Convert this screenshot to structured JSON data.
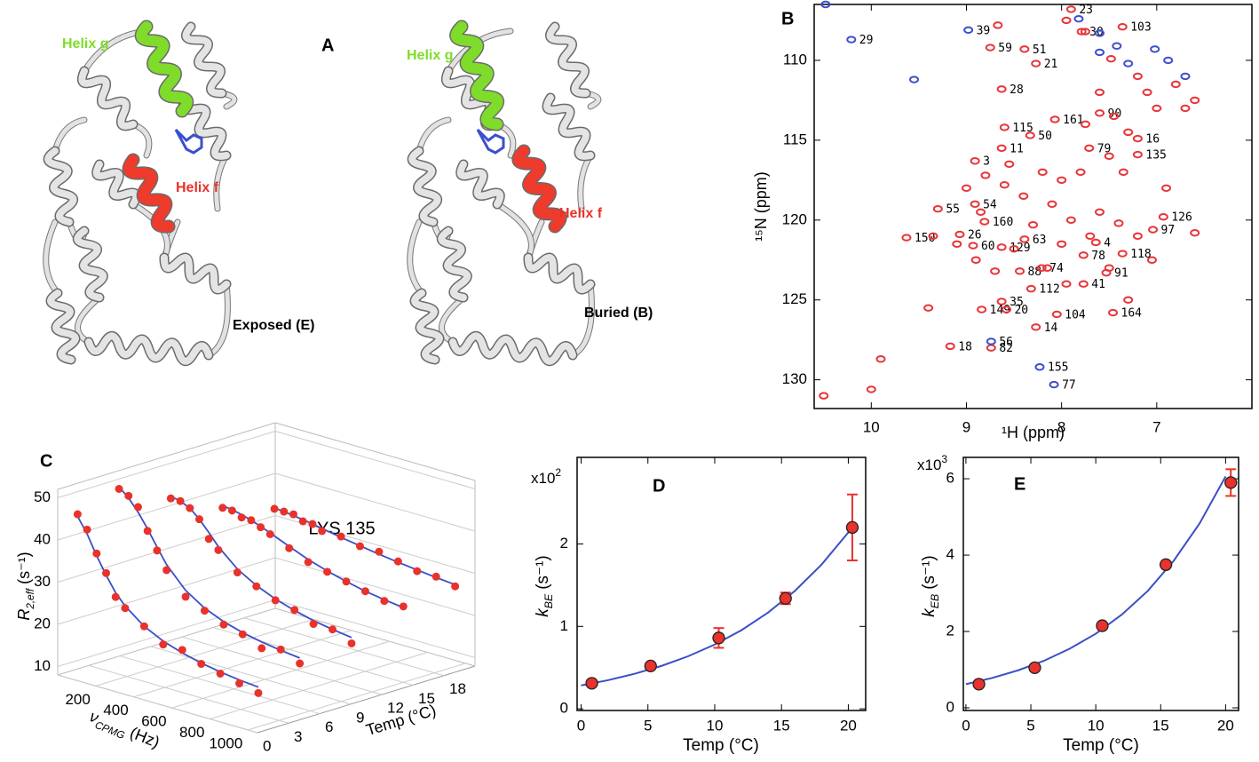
{
  "panel_a": {
    "label": "A",
    "left": {
      "helix_g": "Helix g",
      "helix_f": "Helix f",
      "state": "Exposed (E)"
    },
    "right": {
      "helix_g": "Helix g",
      "helix_f": "Helix f",
      "state": "Buried (B)"
    }
  },
  "chart_data": [
    {
      "type": "nmr",
      "panel": "B",
      "xlabel": "¹H (ppm)",
      "ylabel": "¹⁵N (ppm)",
      "xlim": [
        10.6,
        6.0
      ],
      "xticks": [
        10,
        9,
        8,
        7
      ],
      "ylim": [
        131.8,
        106.5
      ],
      "yticks": [
        110,
        115,
        120,
        125,
        130
      ],
      "series": [
        {
          "color": "#e8363a",
          "x": [
            7.9,
            7.79,
            7.36,
            8.75,
            8.39,
            8.27,
            8.63,
            8.07,
            7.6,
            8.6,
            8.33,
            7.71,
            8.63,
            7.2,
            7.2,
            8.91,
            8.91,
            9.3,
            8.81,
            9.07,
            6.93,
            7.04,
            9.63,
            8.93,
            8.63,
            8.39,
            7.64,
            7.36,
            7.77,
            8.44,
            8.21,
            7.53,
            7.77,
            8.32,
            8.63,
            8.84,
            8.58,
            8.05,
            7.46,
            8.27,
            9.17,
            8.74,
            10.5,
            9.9,
            10.0,
            8.67,
            7.95,
            7.75,
            7.48,
            7.2,
            7.1,
            7.0,
            6.8,
            6.7,
            6.6,
            7.6,
            7.45,
            7.3,
            7.5,
            7.75,
            7.8,
            8.0,
            8.2,
            8.4,
            8.6,
            8.8,
            9.0,
            8.1,
            7.9,
            7.6,
            7.4,
            7.2,
            8.3,
            8.5,
            8.0,
            7.7,
            7.5,
            8.7,
            8.9,
            9.1,
            9.35,
            9.4,
            7.05,
            6.9,
            7.35,
            8.55,
            8.85,
            8.15,
            7.95,
            7.3,
            6.6
          ],
          "values": [
            106.8,
            108.2,
            107.9,
            109.2,
            109.3,
            110.2,
            111.8,
            113.7,
            113.3,
            114.2,
            114.7,
            115.5,
            115.5,
            114.9,
            115.9,
            116.3,
            119.0,
            119.3,
            120.1,
            120.9,
            119.8,
            120.6,
            121.1,
            121.6,
            121.7,
            121.2,
            121.4,
            122.1,
            122.2,
            123.2,
            123.0,
            123.3,
            124.0,
            124.3,
            125.1,
            125.6,
            125.6,
            125.9,
            125.8,
            126.7,
            127.9,
            128.0,
            131.0,
            128.7,
            130.6,
            107.8,
            107.5,
            108.2,
            109.9,
            111,
            112,
            113,
            111.5,
            113,
            112.5,
            112,
            113.5,
            114.5,
            116,
            114.0,
            117,
            117.5,
            117,
            118.5,
            117.8,
            117.2,
            118,
            119,
            120,
            119.5,
            120.2,
            121,
            120.3,
            121.8,
            121.5,
            121,
            123,
            123.2,
            122.5,
            121.5,
            121,
            125.5,
            122.5,
            118,
            117,
            116.5,
            119.5,
            123,
            124,
            125,
            120.8
          ],
          "labels": [
            "23",
            "30",
            "103",
            "59",
            "51",
            "21",
            "28",
            "161",
            "90",
            "115",
            "50",
            "79",
            "11",
            "16",
            "135",
            "3",
            "54",
            "55",
            "160",
            "26",
            "126",
            "97",
            "150",
            "60",
            "129",
            "63",
            "4",
            "118",
            "78",
            "88",
            "74",
            "91",
            "41",
            "112",
            "35",
            "149",
            "20",
            "104",
            "164",
            "14",
            "18",
            "82",
            null,
            null,
            null,
            null,
            null,
            null,
            null,
            null,
            null,
            null,
            null,
            null,
            null,
            null,
            null,
            null,
            null,
            null,
            null,
            null,
            null,
            null,
            null,
            null,
            null,
            null,
            null,
            null,
            null,
            null,
            null,
            null,
            null,
            null,
            null,
            null,
            null,
            null,
            null,
            null,
            null,
            null,
            null,
            null,
            null,
            null,
            null,
            null,
            null
          ]
        },
        {
          "color": "#3e4fd0",
          "x": [
            10.21,
            8.98,
            8.74,
            8.23,
            8.08,
            10.48,
            9.55,
            7.82,
            7.6,
            7.6,
            7.42,
            7.3,
            6.88,
            6.7,
            7.02
          ],
          "values": [
            108.7,
            108.1,
            127.6,
            129.2,
            130.3,
            106.5,
            111.2,
            107.4,
            108.3,
            109.5,
            109.1,
            110.2,
            110.0,
            111.0,
            109.3
          ],
          "labels": [
            "29",
            "39",
            "56",
            "155",
            "77",
            null,
            null,
            null,
            null,
            null,
            null,
            null,
            null,
            null,
            null
          ]
        }
      ]
    },
    {
      "type": "line3d",
      "panel": "C",
      "annotation": "LYS 135",
      "ylabel": {
        "symbol": "R",
        "sub": "2,eff",
        "unit": "(s⁻¹)"
      },
      "xlabel": {
        "symbol": "ν",
        "sub": "CPMG",
        "unit": "(Hz)"
      },
      "zlabel": "Temp (°C)",
      "ylim": [
        8,
        52
      ],
      "yticks": [
        10,
        20,
        30,
        40,
        50
      ],
      "xlim": [
        0,
        1050
      ],
      "xticks": [
        200,
        400,
        600,
        800,
        1000
      ],
      "zlim": [
        0,
        21
      ],
      "zticks": [
        0,
        3,
        6,
        9,
        12,
        15,
        18
      ],
      "point_color": "#e8322b",
      "line_color": "#3a4fc8",
      "x": [
        50,
        100,
        150,
        200,
        250,
        300,
        400,
        500,
        600,
        700,
        800,
        900,
        1000
      ],
      "series": [
        {
          "z": 1,
          "values": [
            46,
            43,
            38,
            34,
            29,
            27,
            24,
            21,
            21,
            19,
            18,
            17,
            16
          ],
          "fit": [
            45.5,
            42,
            37.5,
            33.5,
            30,
            27.5,
            24,
            21.8,
            20.3,
            19.2,
            18.4,
            17.8,
            17.4
          ]
        },
        {
          "z": 5,
          "values": [
            49,
            48,
            46,
            41,
            37,
            33,
            28,
            26,
            24,
            23,
            21,
            22,
            20
          ],
          "fit": [
            49.5,
            47.5,
            44.8,
            41.5,
            37.8,
            34.3,
            29.5,
            26.6,
            24.7,
            23.4,
            22.5,
            21.8,
            21.3
          ]
        },
        {
          "z": 10,
          "values": [
            43,
            43,
            42,
            40,
            36,
            34,
            30,
            28,
            26,
            25,
            23,
            23,
            21
          ],
          "fit": [
            43.5,
            43,
            42,
            40,
            37.5,
            34.8,
            30.8,
            28.2,
            26.3,
            24.9,
            23.8,
            23,
            22.4
          ]
        },
        {
          "z": 15,
          "values": [
            37,
            37,
            36,
            36,
            35,
            34,
            32,
            30,
            29,
            28,
            27,
            26,
            26
          ],
          "fit": [
            37.5,
            37.2,
            36.7,
            36,
            35.2,
            34.3,
            32.4,
            30.6,
            29.2,
            28,
            27,
            26.3,
            25.7
          ]
        },
        {
          "z": 20,
          "values": [
            33,
            33,
            33,
            32,
            32,
            31,
            31,
            30,
            30,
            29,
            28,
            28,
            27
          ],
          "fit": [
            33.2,
            33,
            32.7,
            32.4,
            32,
            31.6,
            30.8,
            30.1,
            29.4,
            28.8,
            28.3,
            27.8,
            27.4
          ]
        }
      ]
    },
    {
      "type": "errorbar",
      "panel": "D",
      "multiplier": {
        "base": "x10",
        "exp": "2"
      },
      "ylabel": {
        "symbol": "k",
        "sub": "BE",
        "unit": "(s⁻¹)"
      },
      "xlabel": "Temp (°C)",
      "xlim": [
        -0.3,
        21.3
      ],
      "xticks": [
        0,
        5,
        10,
        15,
        20
      ],
      "ylim": [
        -0.02,
        3.05
      ],
      "yticks": [
        0,
        1,
        2
      ],
      "point_color": "#e8322b",
      "error_color": "#e8322b",
      "line_color": "#3a4fc8",
      "x": [
        0.8,
        5.2,
        10.3,
        15.3,
        20.3
      ],
      "values": [
        0.31,
        0.52,
        0.86,
        1.34,
        2.2
      ],
      "errors": [
        null,
        null,
        0.12,
        0.07,
        0.4
      ],
      "fit_x": [
        0,
        2,
        4,
        6,
        8,
        10,
        12,
        14,
        16,
        18,
        20,
        20.5
      ],
      "fit_values": [
        0.284,
        0.347,
        0.425,
        0.52,
        0.637,
        0.78,
        0.954,
        1.168,
        1.43,
        1.75,
        2.14,
        2.25
      ]
    },
    {
      "type": "errorbar",
      "panel": "E",
      "multiplier": {
        "base": "x10",
        "exp": "3"
      },
      "ylabel": {
        "symbol": "k",
        "sub": "EB",
        "unit": "(s⁻¹)"
      },
      "xlabel": "Temp (°C)",
      "xlim": [
        -0.2,
        21.0
      ],
      "xticks": [
        0,
        5,
        10,
        15,
        20
      ],
      "ylim": [
        -0.07,
        6.56
      ],
      "yticks": [
        0,
        2,
        4,
        6
      ],
      "point_color": "#e8322b",
      "error_color": "#e8322b",
      "line_color": "#3a4fc8",
      "x": [
        1,
        5.3,
        10.5,
        15.4,
        20.4
      ],
      "values": [
        0.62,
        1.05,
        2.15,
        3.75,
        5.9
      ],
      "errors": [
        null,
        null,
        null,
        null,
        0.35
      ],
      "fit_x": [
        0,
        2,
        4,
        6,
        8,
        10,
        12,
        14,
        16,
        18,
        20
      ],
      "fit_values": [
        0.62,
        0.78,
        0.98,
        1.23,
        1.55,
        1.94,
        2.44,
        3.06,
        3.85,
        4.83,
        6.06
      ]
    }
  ]
}
